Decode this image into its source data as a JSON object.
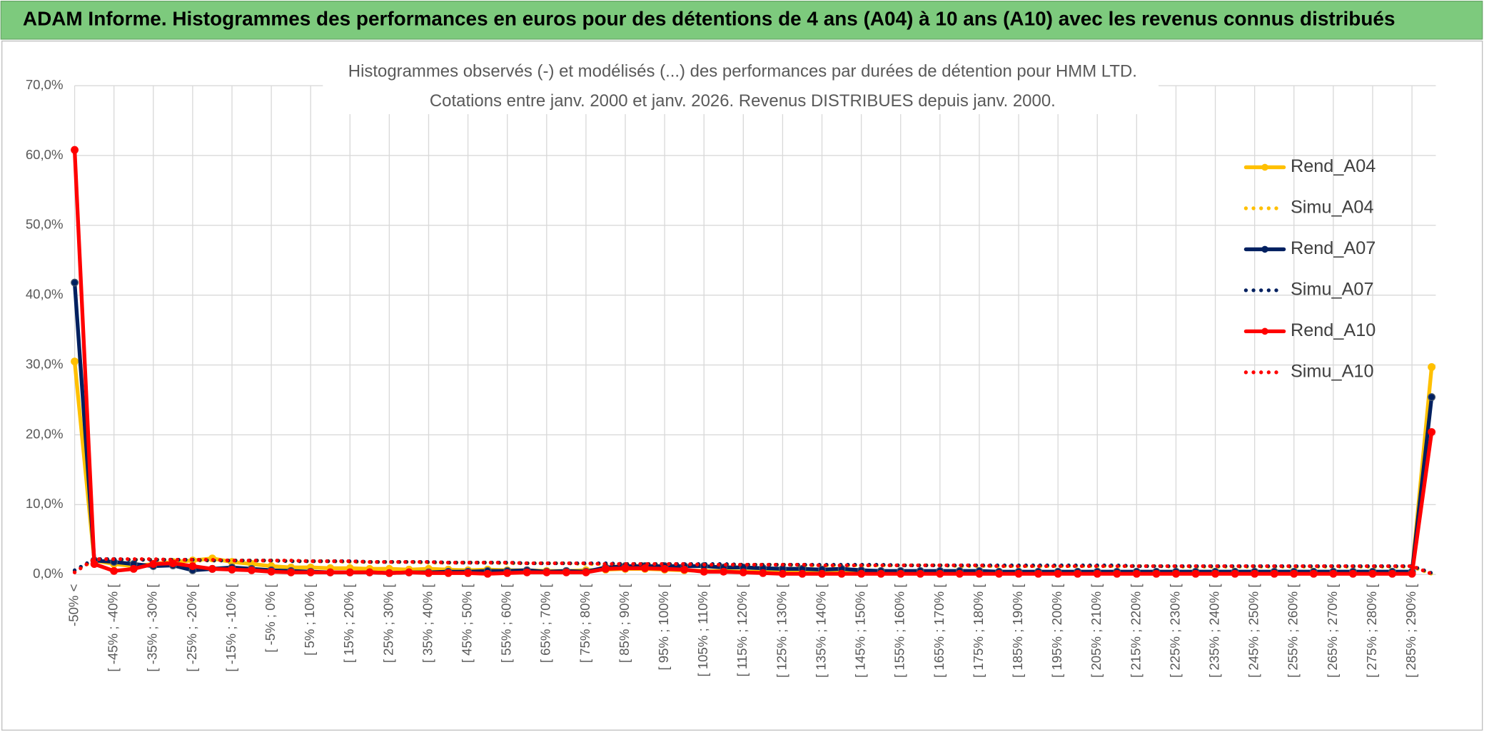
{
  "header": {
    "title": "ADAM Informe. Histogrammes des performances en euros pour des détentions de 4 ans (A04) à 10 ans (A10) avec les revenus connus distribués"
  },
  "chart_data": {
    "type": "line",
    "title": "Histogrammes observés (-) et modélisés (...) des performances par durées de détention pour HMM LTD.",
    "subtitle": "Cotations entre janv. 2000 et janv. 2026. Revenus DISTRIBUES depuis janv. 2000.",
    "categories": [
      "-50% <",
      null,
      "[ -45% ; -40% [",
      null,
      "[ -35% ; -30% [",
      null,
      "[ -25% ; -20% [",
      null,
      "[ -15% ; -10% [",
      null,
      "[ -5% ; 0% [",
      null,
      "[ 5% ; 10% [",
      null,
      "[ 15% ; 20% [",
      null,
      "[ 25% ; 30% [",
      null,
      "[ 35% ; 40% [",
      null,
      "[ 45% ; 50% [",
      null,
      "[ 55% ; 60% [",
      null,
      "[ 65% ; 70% [",
      null,
      "[ 75% ; 80% [",
      null,
      "[ 85% ; 90% [",
      null,
      "[ 95% ; 100% [",
      null,
      "[ 105% ; 110% [",
      null,
      "[ 115% ; 120% [",
      null,
      "[ 125% ; 130% [",
      null,
      "[ 135% ; 140% [",
      null,
      "[ 145% ; 150% [",
      null,
      "[ 155% ; 160% [",
      null,
      "[ 165% ; 170% [",
      null,
      "[ 175% ; 180% [",
      null,
      "[ 185% ; 190% [",
      null,
      "[ 195% ; 200% [",
      null,
      "[ 205% ; 210% [",
      null,
      "[ 215% ; 220% [",
      null,
      "[ 225% ; 230% [",
      null,
      "[ 235% ; 240% [",
      null,
      "[ 245% ; 250% [",
      null,
      "[ 255% ; 260% [",
      null,
      "[ 265% ; 270% [",
      null,
      "[ 275% ; 280% [",
      null,
      "[ 285% ; 290% [",
      null
    ],
    "ylim": [
      0,
      70
    ],
    "yticks": [
      {
        "value": 0,
        "label": "0,0%"
      },
      {
        "value": 10,
        "label": "10,0%"
      },
      {
        "value": 20,
        "label": "20,0%"
      },
      {
        "value": 30,
        "label": "30,0%"
      },
      {
        "value": 40,
        "label": "40,0%"
      },
      {
        "value": 50,
        "label": "50,0%"
      },
      {
        "value": 60,
        "label": "60,0%"
      },
      {
        "value": 70,
        "label": "70,0%"
      }
    ],
    "grid": true,
    "legend": "right",
    "series": [
      {
        "name": "Rend_A04",
        "color": "#ffc000",
        "style": "solid",
        "values": [
          30.5,
          2.0,
          1.5,
          1.2,
          1.5,
          1.8,
          2.0,
          2.3,
          1.8,
          1.5,
          1.2,
          1.0,
          1.0,
          0.9,
          0.9,
          0.8,
          0.8,
          0.7,
          0.8,
          0.7,
          0.6,
          0.7,
          0.6,
          0.6,
          0.5,
          0.5,
          0.6,
          0.7,
          0.8,
          0.8,
          0.7,
          0.6,
          0.5,
          0.5,
          0.4,
          0.4,
          0.3,
          0.3,
          0.3,
          0.3,
          0.3,
          0.3,
          0.3,
          0.3,
          0.3,
          0.3,
          0.3,
          0.3,
          0.3,
          0.3,
          0.3,
          0.3,
          0.3,
          0.3,
          0.3,
          0.3,
          0.3,
          0.3,
          0.3,
          0.3,
          0.3,
          0.3,
          0.3,
          0.3,
          0.3,
          0.3,
          0.3,
          0.3,
          0.3,
          29.7
        ]
      },
      {
        "name": "Simu_A04",
        "color": "#ffc000",
        "style": "dotted",
        "values": [
          0.5,
          2.0,
          2.1,
          2.1,
          2.1,
          2.1,
          2.0,
          2.0,
          2.0,
          2.0,
          2.0,
          1.9,
          1.9,
          1.9,
          1.8,
          1.8,
          1.8,
          1.8,
          1.7,
          1.7,
          1.7,
          1.7,
          1.6,
          1.6,
          1.6,
          1.6,
          1.5,
          1.5,
          1.5,
          1.5,
          1.5,
          1.4,
          1.4,
          1.4,
          1.4,
          1.4,
          1.4,
          1.3,
          1.3,
          1.3,
          1.3,
          1.3,
          1.3,
          1.3,
          1.3,
          1.2,
          1.2,
          1.2,
          1.2,
          1.2,
          1.2,
          1.2,
          1.2,
          1.2,
          1.2,
          1.2,
          1.1,
          1.1,
          1.1,
          1.1,
          1.1,
          1.1,
          1.1,
          1.1,
          1.1,
          1.1,
          1.1,
          1.1,
          1.1,
          0.1
        ]
      },
      {
        "name": "Rend_A07",
        "color": "#002060",
        "style": "solid",
        "values": [
          41.8,
          2.0,
          1.8,
          1.5,
          1.2,
          1.3,
          0.6,
          0.8,
          1.0,
          0.8,
          0.6,
          0.5,
          0.4,
          0.3,
          0.3,
          0.3,
          0.2,
          0.3,
          0.3,
          0.4,
          0.4,
          0.5,
          0.5,
          0.6,
          0.4,
          0.5,
          0.4,
          1.0,
          1.2,
          1.2,
          1.2,
          1.2,
          1.2,
          1.0,
          1.0,
          0.9,
          0.8,
          0.8,
          0.7,
          0.8,
          0.6,
          0.5,
          0.5,
          0.5,
          0.5,
          0.5,
          0.5,
          0.4,
          0.4,
          0.4,
          0.4,
          0.4,
          0.4,
          0.4,
          0.4,
          0.4,
          0.4,
          0.4,
          0.4,
          0.4,
          0.4,
          0.4,
          0.4,
          0.4,
          0.4,
          0.4,
          0.4,
          0.4,
          0.4,
          25.4
        ]
      },
      {
        "name": "Simu_A07",
        "color": "#002060",
        "style": "dotted",
        "values": [
          0.6,
          2.2,
          2.2,
          2.1,
          2.1,
          2.1,
          2.1,
          2.0,
          2.0,
          2.0,
          2.0,
          1.9,
          1.9,
          1.9,
          1.9,
          1.8,
          1.8,
          1.8,
          1.8,
          1.7,
          1.7,
          1.7,
          1.7,
          1.6,
          1.6,
          1.6,
          1.6,
          1.6,
          1.5,
          1.5,
          1.5,
          1.5,
          1.5,
          1.5,
          1.4,
          1.4,
          1.4,
          1.4,
          1.4,
          1.4,
          1.4,
          1.4,
          1.3,
          1.3,
          1.3,
          1.3,
          1.3,
          1.3,
          1.3,
          1.3,
          1.3,
          1.3,
          1.3,
          1.3,
          1.2,
          1.2,
          1.2,
          1.2,
          1.2,
          1.2,
          1.2,
          1.2,
          1.2,
          1.2,
          1.2,
          1.2,
          1.2,
          1.2,
          1.2,
          0.2
        ]
      },
      {
        "name": "Rend_A10",
        "color": "#ff0000",
        "style": "solid",
        "values": [
          60.8,
          1.5,
          0.5,
          0.8,
          1.5,
          1.6,
          1.2,
          0.8,
          0.7,
          0.6,
          0.4,
          0.3,
          0.3,
          0.3,
          0.3,
          0.3,
          0.2,
          0.3,
          0.2,
          0.2,
          0.2,
          0.1,
          0.2,
          0.3,
          0.3,
          0.3,
          0.3,
          0.8,
          0.9,
          0.9,
          0.8,
          0.7,
          0.4,
          0.4,
          0.3,
          0.2,
          0.1,
          0.1,
          0.1,
          0.1,
          0.1,
          0.1,
          0.1,
          0.1,
          0.1,
          0.1,
          0.1,
          0.1,
          0.1,
          0.1,
          0.1,
          0.1,
          0.1,
          0.1,
          0.1,
          0.1,
          0.1,
          0.1,
          0.1,
          0.1,
          0.1,
          0.1,
          0.1,
          0.1,
          0.1,
          0.1,
          0.1,
          0.1,
          0.1,
          20.4
        ]
      },
      {
        "name": "Simu_A10",
        "color": "#ff0000",
        "style": "dotted",
        "values": [
          0.3,
          2.2,
          2.2,
          2.2,
          2.2,
          2.1,
          2.1,
          2.1,
          2.0,
          2.0,
          2.0,
          2.0,
          1.9,
          1.9,
          1.9,
          1.8,
          1.8,
          1.8,
          1.8,
          1.7,
          1.7,
          1.7,
          1.7,
          1.6,
          1.6,
          1.6,
          1.6,
          1.5,
          1.5,
          1.5,
          1.5,
          1.5,
          1.4,
          1.4,
          1.4,
          1.4,
          1.4,
          1.4,
          1.3,
          1.3,
          1.3,
          1.3,
          1.3,
          1.3,
          1.3,
          1.3,
          1.3,
          1.2,
          1.2,
          1.2,
          1.2,
          1.2,
          1.2,
          1.2,
          1.2,
          1.2,
          1.2,
          1.2,
          1.2,
          1.2,
          1.2,
          1.2,
          1.2,
          1.2,
          1.2,
          1.2,
          1.2,
          1.2,
          1.2,
          0.1
        ]
      }
    ]
  }
}
